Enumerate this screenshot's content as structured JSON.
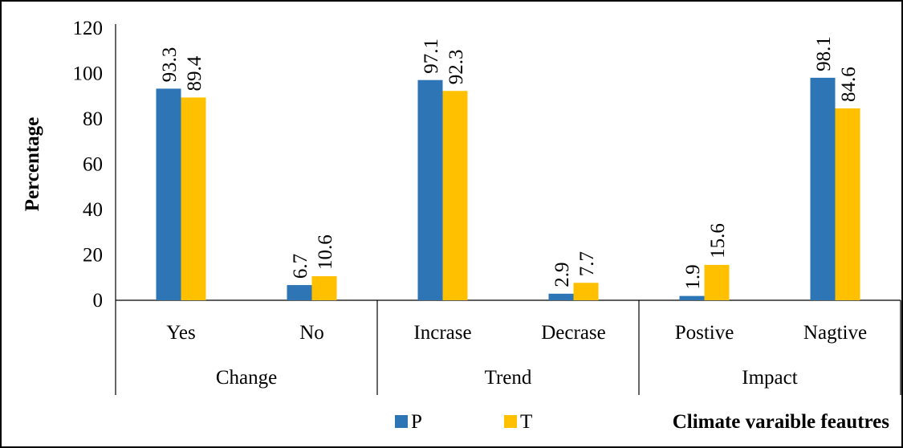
{
  "chart_data": {
    "type": "bar",
    "categories": [
      "Yes",
      "No",
      "Incrase",
      "Decrase",
      "Postive",
      "Nagtive"
    ],
    "groups": [
      {
        "label": "Change",
        "categories": [
          "Yes",
          "No"
        ]
      },
      {
        "label": "Trend",
        "categories": [
          "Incrase",
          "Decrase"
        ]
      },
      {
        "label": "Impact",
        "categories": [
          "Postive",
          "Nagtive"
        ]
      }
    ],
    "series": [
      {
        "name": "P",
        "color": "#2E75B6",
        "values": [
          93.3,
          6.7,
          97.1,
          2.9,
          1.9,
          98.1
        ],
        "labels": [
          "93.3",
          "6.7",
          "97.1",
          "2.9",
          "1.9",
          "98.1"
        ]
      },
      {
        "name": "T",
        "color": "#FFC000",
        "values": [
          89.4,
          10.6,
          92.3,
          7.7,
          15.6,
          84.6
        ],
        "labels": [
          "89.4",
          "10.6",
          "92.3",
          "7.7",
          "15.6",
          "84.6"
        ]
      }
    ],
    "ylabel": "Percentage",
    "xlabel": "Climate varaible feautres",
    "ylim": [
      0,
      120
    ],
    "yticks": [
      "0",
      "20",
      "40",
      "60",
      "80",
      "100",
      "120"
    ],
    "grid": false,
    "legend": "bottom"
  }
}
